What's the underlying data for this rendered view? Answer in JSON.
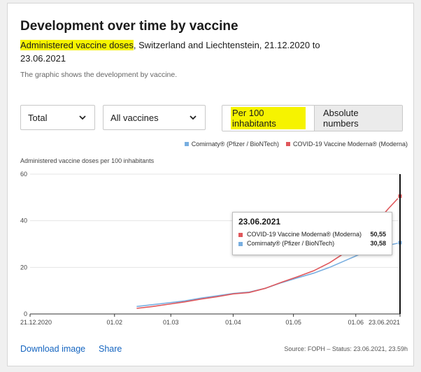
{
  "header": {
    "title": "Development over time by vaccine",
    "subtitle_highlight": "Administered vaccine doses",
    "subtitle_rest": ", Switzerland and Liechtenstein, 21.12.2020 to 23.06.2021",
    "description": "The graphic shows the development by vaccine."
  },
  "filters": {
    "region": "Total",
    "vaccine": "All vaccines",
    "toggle_active": "Per 100 inhabitants",
    "toggle_inactive": "Absolute numbers"
  },
  "legend": [
    {
      "label": "Comirnaty® (Pfizer / BioNTech)",
      "color": "#78aee0"
    },
    {
      "label": "COVID-19 Vaccine Moderna® (Moderna)",
      "color": "#e0575b"
    }
  ],
  "chart_data": {
    "type": "line",
    "ylabel": "Administered vaccine doses per 100 inhabitants",
    "ylim": [
      0,
      60
    ],
    "yticks": [
      "0",
      "20",
      "40",
      "60"
    ],
    "x_tick_labels": [
      "21.12.2020",
      "01.02",
      "01.03",
      "01.04",
      "01.05",
      "01.06",
      "23.06.2021"
    ],
    "x_tick_dates": [
      "2020-12-21",
      "2021-02-01",
      "2021-03-01",
      "2021-04-01",
      "2021-05-01",
      "2021-06-01",
      "2021-06-23"
    ],
    "series": [
      {
        "name": "Comirnaty® (Pfizer / BioNTech)",
        "color": "#78aee0",
        "points": [
          [
            "2021-02-12",
            3.2
          ],
          [
            "2021-02-20",
            4.0
          ],
          [
            "2021-02-28",
            4.8
          ],
          [
            "2021-03-08",
            5.6
          ],
          [
            "2021-03-16",
            6.8
          ],
          [
            "2021-03-24",
            7.8
          ],
          [
            "2021-04-01",
            8.8
          ],
          [
            "2021-04-09",
            9.4
          ],
          [
            "2021-04-17",
            11.0
          ],
          [
            "2021-04-25",
            13.4
          ],
          [
            "2021-05-03",
            15.5
          ],
          [
            "2021-05-11",
            17.5
          ],
          [
            "2021-05-19",
            20.0
          ],
          [
            "2021-05-27",
            23.0
          ],
          [
            "2021-06-04",
            26.0
          ],
          [
            "2021-06-12",
            28.5
          ],
          [
            "2021-06-23",
            30.58
          ]
        ]
      },
      {
        "name": "COVID-19 Vaccine Moderna® (Moderna)",
        "color": "#e0575b",
        "points": [
          [
            "2021-02-12",
            2.4
          ],
          [
            "2021-02-20",
            3.2
          ],
          [
            "2021-02-28",
            4.2
          ],
          [
            "2021-03-08",
            5.2
          ],
          [
            "2021-03-16",
            6.4
          ],
          [
            "2021-03-24",
            7.4
          ],
          [
            "2021-04-01",
            8.6
          ],
          [
            "2021-04-09",
            9.2
          ],
          [
            "2021-04-17",
            11.0
          ],
          [
            "2021-04-25",
            13.6
          ],
          [
            "2021-05-03",
            16.0
          ],
          [
            "2021-05-11",
            18.5
          ],
          [
            "2021-05-19",
            22.0
          ],
          [
            "2021-05-27",
            26.5
          ],
          [
            "2021-06-04",
            32.0
          ],
          [
            "2021-06-12",
            40.0
          ],
          [
            "2021-06-17",
            45.0
          ],
          [
            "2021-06-23",
            50.55
          ]
        ]
      }
    ]
  },
  "tooltip": {
    "date": "23.06.2021",
    "rows": [
      {
        "name": "COVID-19 Vaccine Moderna® (Moderna)",
        "value": "50,55",
        "color": "#e0575b"
      },
      {
        "name": "Comirnaty® (Pfizer / BioNTech)",
        "value": "30,58",
        "color": "#78aee0"
      }
    ]
  },
  "footer": {
    "download": "Download image",
    "share": "Share",
    "source": "Source: FOPH – Status: 23.06.2021, 23.59h"
  }
}
